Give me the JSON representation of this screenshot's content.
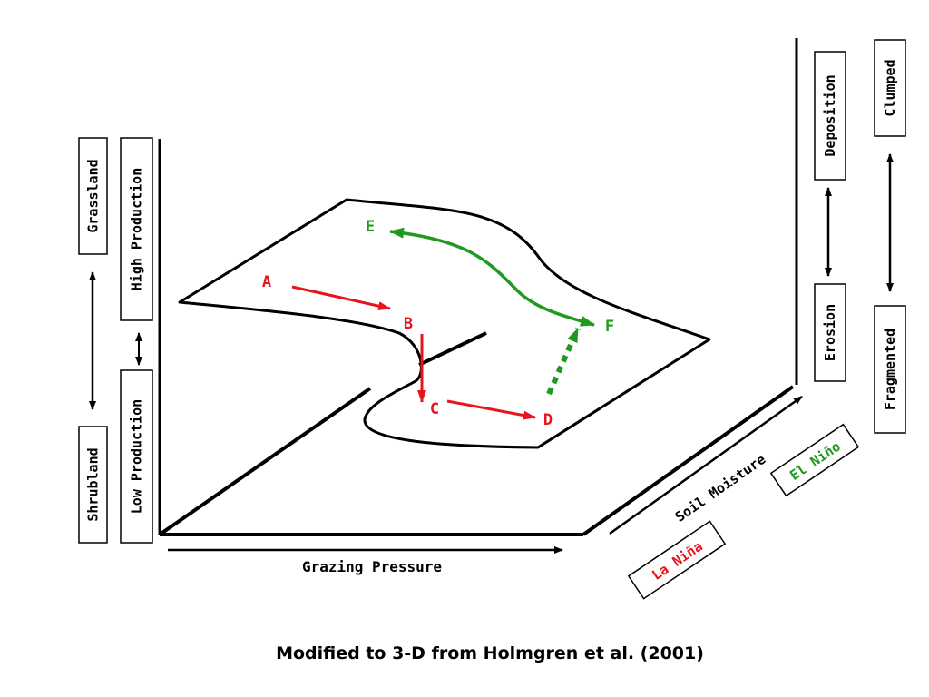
{
  "colors": {
    "red": "#e8141c",
    "green": "#1f9a1f",
    "black": "#000000"
  },
  "left_labels": {
    "grassland": "Grassland",
    "shrubland": "Shrubland",
    "high_production": "High Production",
    "low_production": "Low Production"
  },
  "right_labels": {
    "deposition": "Deposition",
    "erosion": "Erosion",
    "clumped": "Clumped",
    "fragmented": "Fragmented"
  },
  "axes": {
    "grazing_pressure": "Grazing Pressure",
    "soil_moisture": "Soil Moisture",
    "el_nino": "El Niño",
    "la_nina": "La Niña"
  },
  "states": {
    "a": "A",
    "b": "B",
    "c": "C",
    "d": "D",
    "e": "E",
    "f": "F"
  },
  "caption": "Modified to 3-D from Holmgren et al. (2001)"
}
